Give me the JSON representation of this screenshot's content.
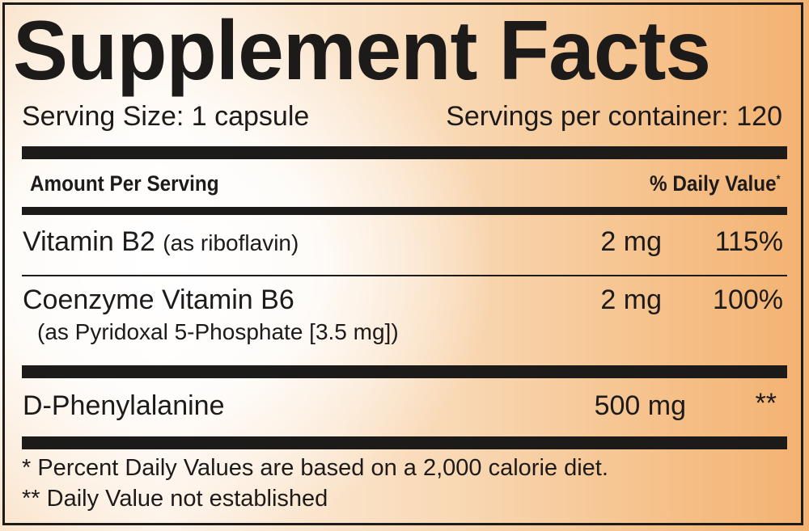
{
  "title": "Supplement Facts",
  "serving_size": "Serving Size: 1 capsule",
  "servings_per_container": "Servings per container: 120",
  "header": {
    "amount": "Amount Per Serving",
    "daily_value": "% Daily Value",
    "daily_value_mark": "*"
  },
  "rows": [
    {
      "name": "Vitamin B2",
      "detail": "(as riboflavin)",
      "amount": "2 mg",
      "dv": "115%"
    },
    {
      "name": "Coenzyme Vitamin B6",
      "detail": "(as Pyridoxal 5-Phosphate [3.5 mg])",
      "amount": "2 mg",
      "dv": "100%"
    },
    {
      "name": "D-Phenylalanine",
      "amount": "500 mg",
      "dv": "**"
    }
  ],
  "footnotes": [
    "* Percent Daily Values are based on a 2,000 calorie diet.",
    "** Daily Value not established"
  ],
  "colors": {
    "ink": "#1d1a1a",
    "accent": "#f3b272"
  }
}
